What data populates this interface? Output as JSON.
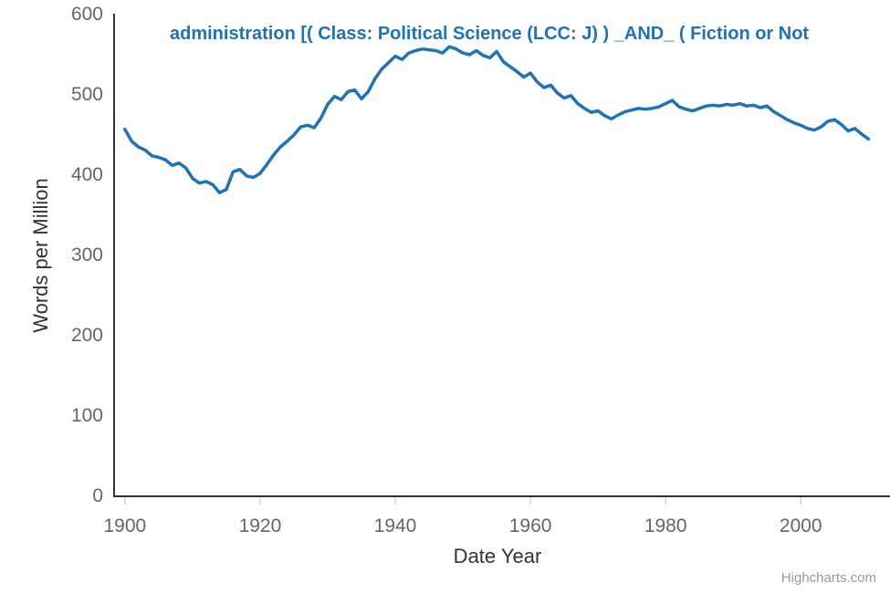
{
  "chart_data": {
    "type": "line",
    "title": "administration [( Class: Political Science (LCC: J) ) _AND_ ( Fiction or Not",
    "xlabel": "Date Year",
    "ylabel": "Words per Million",
    "x_ticks": [
      1900,
      1920,
      1940,
      1960,
      1980,
      2000
    ],
    "y_ticks": [
      0,
      100,
      200,
      300,
      400,
      500,
      600
    ],
    "xlim": [
      1898.4,
      2013.2
    ],
    "ylim": [
      0,
      600
    ],
    "grid": false,
    "legend": "none",
    "credits": "Highcharts.com",
    "colors": {
      "line": "#2071b5",
      "title": "#2071b5",
      "axis_line": "#333333",
      "tick_mark": "#ccd6eb",
      "tick_label": "#666666",
      "axis_title": "#333333",
      "credits": "#999999"
    },
    "series": [
      {
        "name": "administration [( Class: Political Science (LCC: J) ) _AND_ ( Fiction or Not",
        "x_start": 1900,
        "x_step": 1,
        "values": [
          456,
          441,
          434,
          430,
          423,
          421,
          418,
          411,
          414,
          408,
          395,
          389,
          391,
          387,
          377,
          381,
          403,
          406,
          398,
          396,
          401,
          412,
          424,
          434,
          441,
          449,
          459,
          461,
          458,
          470,
          487,
          497,
          493,
          503,
          505,
          494,
          503,
          519,
          531,
          539,
          547,
          543,
          551,
          554,
          556,
          555,
          554,
          551,
          559,
          556,
          551,
          549,
          554,
          548,
          545,
          553,
          540,
          534,
          528,
          521,
          526,
          515,
          508,
          511,
          501,
          495,
          498,
          488,
          482,
          477,
          479,
          473,
          469,
          474,
          478,
          480,
          482,
          481,
          482,
          484,
          488,
          492,
          484,
          481,
          479,
          482,
          485,
          486,
          485,
          487,
          486,
          488,
          485,
          486,
          483,
          485,
          478,
          473,
          468,
          464,
          461,
          457,
          455,
          459,
          466,
          468,
          462,
          454,
          457,
          450,
          444
        ]
      }
    ]
  }
}
